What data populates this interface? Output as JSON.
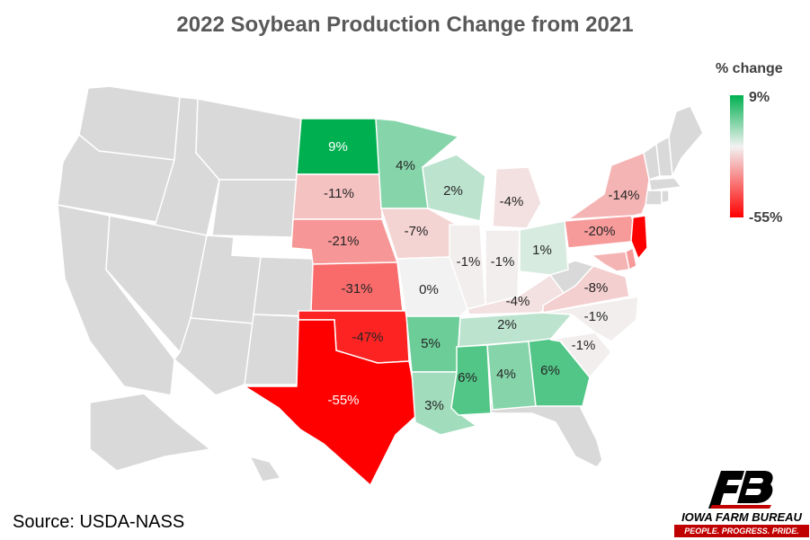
{
  "title": "2022 Soybean Production Change from 2021",
  "legend": {
    "title": "% change",
    "max_label": "9%",
    "min_label": "-55%",
    "max_value": 9,
    "min_value": -55,
    "color_max": "#00b050",
    "color_mid": "#f2f2f2",
    "color_min": "#ff0000"
  },
  "source": "Source: USDA-NASS",
  "logo": {
    "name": "IOWA FARM BUREAU",
    "tagline": "PEOPLE. PROGRESS. PRIDE.",
    "icon": "fb-logo-icon"
  },
  "no_data_color": "#d9d9d9",
  "states": [
    {
      "code": "ND",
      "label": "9%",
      "value": 9
    },
    {
      "code": "SD",
      "label": "-11%",
      "value": -11
    },
    {
      "code": "NE",
      "label": "-21%",
      "value": -21
    },
    {
      "code": "KS",
      "label": "-31%",
      "value": -31
    },
    {
      "code": "OK",
      "label": "-47%",
      "value": -47
    },
    {
      "code": "TX",
      "label": "-55%",
      "value": -55
    },
    {
      "code": "MN",
      "label": "4%",
      "value": 4
    },
    {
      "code": "IA",
      "label": "-7%",
      "value": -7
    },
    {
      "code": "MO",
      "label": "0%",
      "value": 0
    },
    {
      "code": "AR",
      "label": "5%",
      "value": 5
    },
    {
      "code": "LA",
      "label": "3%",
      "value": 3
    },
    {
      "code": "WI",
      "label": "2%",
      "value": 2
    },
    {
      "code": "IL",
      "label": "-1%",
      "value": -1
    },
    {
      "code": "MI",
      "label": "-4%",
      "value": -4
    },
    {
      "code": "IN",
      "label": "-1%",
      "value": -1
    },
    {
      "code": "OH",
      "label": "1%",
      "value": 1
    },
    {
      "code": "KY",
      "label": "-4%",
      "value": -4
    },
    {
      "code": "TN",
      "label": "2%",
      "value": 2
    },
    {
      "code": "MS",
      "label": "6%",
      "value": 6
    },
    {
      "code": "AL",
      "label": "4%",
      "value": 4
    },
    {
      "code": "GA",
      "label": "6%",
      "value": 6
    },
    {
      "code": "SC",
      "label": "-1%",
      "value": -1
    },
    {
      "code": "NC",
      "label": "-1%",
      "value": -1
    },
    {
      "code": "VA",
      "label": "-8%",
      "value": -8
    },
    {
      "code": "PA",
      "label": "-20%",
      "value": -20
    },
    {
      "code": "NY",
      "label": "-14%",
      "value": -14
    },
    {
      "code": "NJ",
      "label": "",
      "value": -55
    },
    {
      "code": "MD",
      "label": "",
      "value": -14
    },
    {
      "code": "DE",
      "label": "",
      "value": -20
    }
  ]
}
